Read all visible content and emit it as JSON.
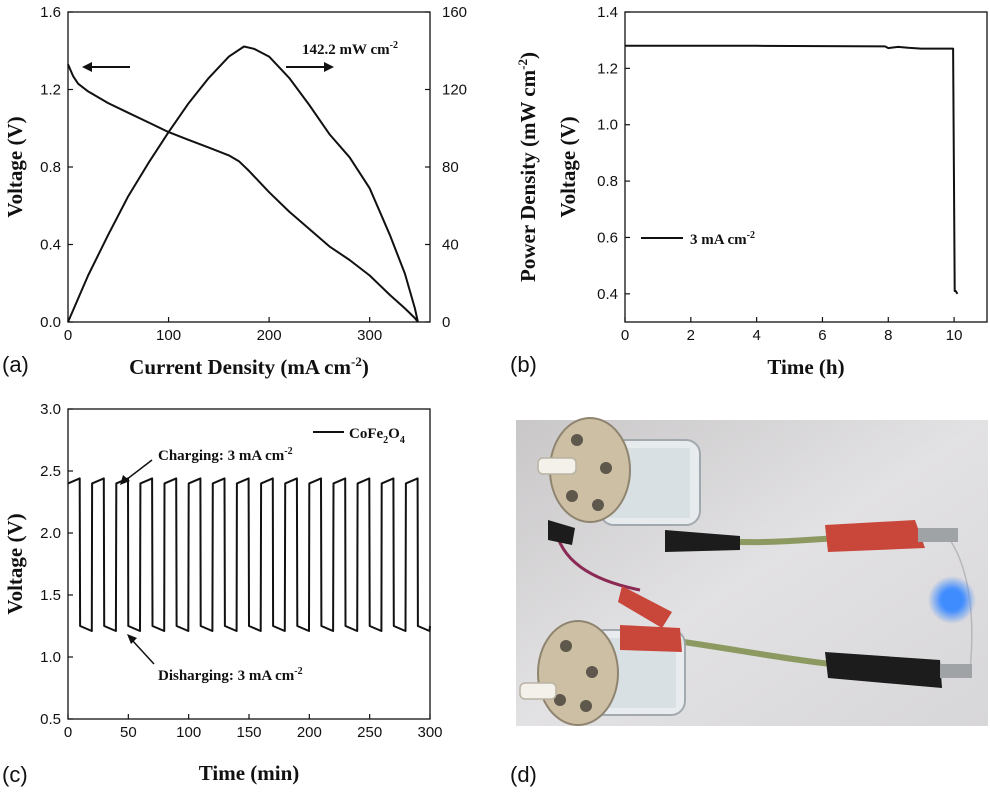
{
  "chart_data": [
    {
      "panel": "(a)",
      "type": "line",
      "xlabel": "Current Density (mA cm",
      "xlabel_sup": "-2",
      "xlabel_tail": ")",
      "ylabel": "Voltage (V)",
      "y2label": "Power Density (mW cm",
      "y2label_sup": "-2",
      "y2label_tail": ")",
      "xlim": [
        0,
        360
      ],
      "ylim": [
        0,
        1.6
      ],
      "y2lim": [
        0,
        160
      ],
      "xticks": [
        "0",
        "100",
        "200",
        "300"
      ],
      "yticks": [
        "0.0",
        "0.4",
        "0.8",
        "1.2",
        "1.6"
      ],
      "y2ticks": [
        "0",
        "40",
        "80",
        "120",
        "160"
      ],
      "annotation": "142.2 mW cm",
      "annotation_sup": "-2",
      "series": [
        {
          "axis": "left",
          "x": [
            0,
            5,
            10,
            20,
            40,
            60,
            80,
            100,
            120,
            140,
            160,
            170,
            180,
            200,
            220,
            240,
            260,
            280,
            300,
            320,
            335,
            345,
            348
          ],
          "y": [
            1.33,
            1.27,
            1.23,
            1.19,
            1.13,
            1.08,
            1.03,
            0.98,
            0.94,
            0.9,
            0.86,
            0.83,
            0.78,
            0.67,
            0.57,
            0.48,
            0.39,
            0.32,
            0.24,
            0.14,
            0.07,
            0.02,
            0.0
          ]
        },
        {
          "axis": "right",
          "x": [
            0,
            20,
            40,
            60,
            80,
            100,
            120,
            140,
            160,
            175,
            185,
            200,
            220,
            240,
            260,
            280,
            300,
            320,
            335,
            345,
            348
          ],
          "y": [
            0,
            24,
            45,
            65,
            82,
            98,
            113,
            126,
            137,
            142.2,
            141,
            137,
            126,
            112,
            97,
            85,
            69,
            45,
            25,
            7,
            0
          ]
        }
      ]
    },
    {
      "panel": "(b)",
      "type": "line",
      "xlabel": "Time (h)",
      "ylabel": "Voltage (V)",
      "xlim": [
        0,
        11
      ],
      "ylim": [
        0.3,
        1.4
      ],
      "xticks": [
        "0",
        "2",
        "4",
        "6",
        "8",
        "10"
      ],
      "yticks": [
        "0.4",
        "0.6",
        "0.8",
        "1.0",
        "1.2",
        "1.4"
      ],
      "legend": "3 mA cm",
      "legend_sup": "-2",
      "series": [
        {
          "x": [
            0,
            4,
            7.9,
            8.0,
            8.3,
            8.6,
            9.0,
            9.5,
            9.97,
            10.02,
            10.05,
            10.1
          ],
          "y": [
            1.28,
            1.28,
            1.278,
            1.272,
            1.276,
            1.273,
            1.27,
            1.27,
            1.27,
            0.41,
            0.41,
            0.4
          ]
        }
      ]
    },
    {
      "panel": "(c)",
      "type": "line",
      "xlabel": "Time (min)",
      "ylabel": "Voltage (V)",
      "xlim": [
        0,
        300
      ],
      "ylim": [
        0.5,
        3.0
      ],
      "xticks": [
        "0",
        "50",
        "100",
        "150",
        "200",
        "250",
        "300"
      ],
      "yticks": [
        "0.5",
        "1.0",
        "1.5",
        "2.0",
        "2.5",
        "3.0"
      ],
      "legend": "CoFe",
      "legend_sub1": "2",
      "legend_mid": "O",
      "legend_sub2": "4",
      "charge_label": "Charging: 3 mA cm",
      "charge_sup": "-2",
      "discharge_label": "Disharging: 3 mA cm",
      "discharge_sup": "-2",
      "cycle_minutes": 20,
      "cycles": 15,
      "charge_voltage": [
        2.4,
        2.44
      ],
      "discharge_voltage": [
        1.25,
        1.21
      ]
    }
  ],
  "photo": {
    "panel": "(d)",
    "led_color": "#3f8cff",
    "clip_red": "#c8463a",
    "clip_black": "#1c1c1c",
    "wire_green": "#8c9a62",
    "cell_cap": "#cdbfa4"
  }
}
